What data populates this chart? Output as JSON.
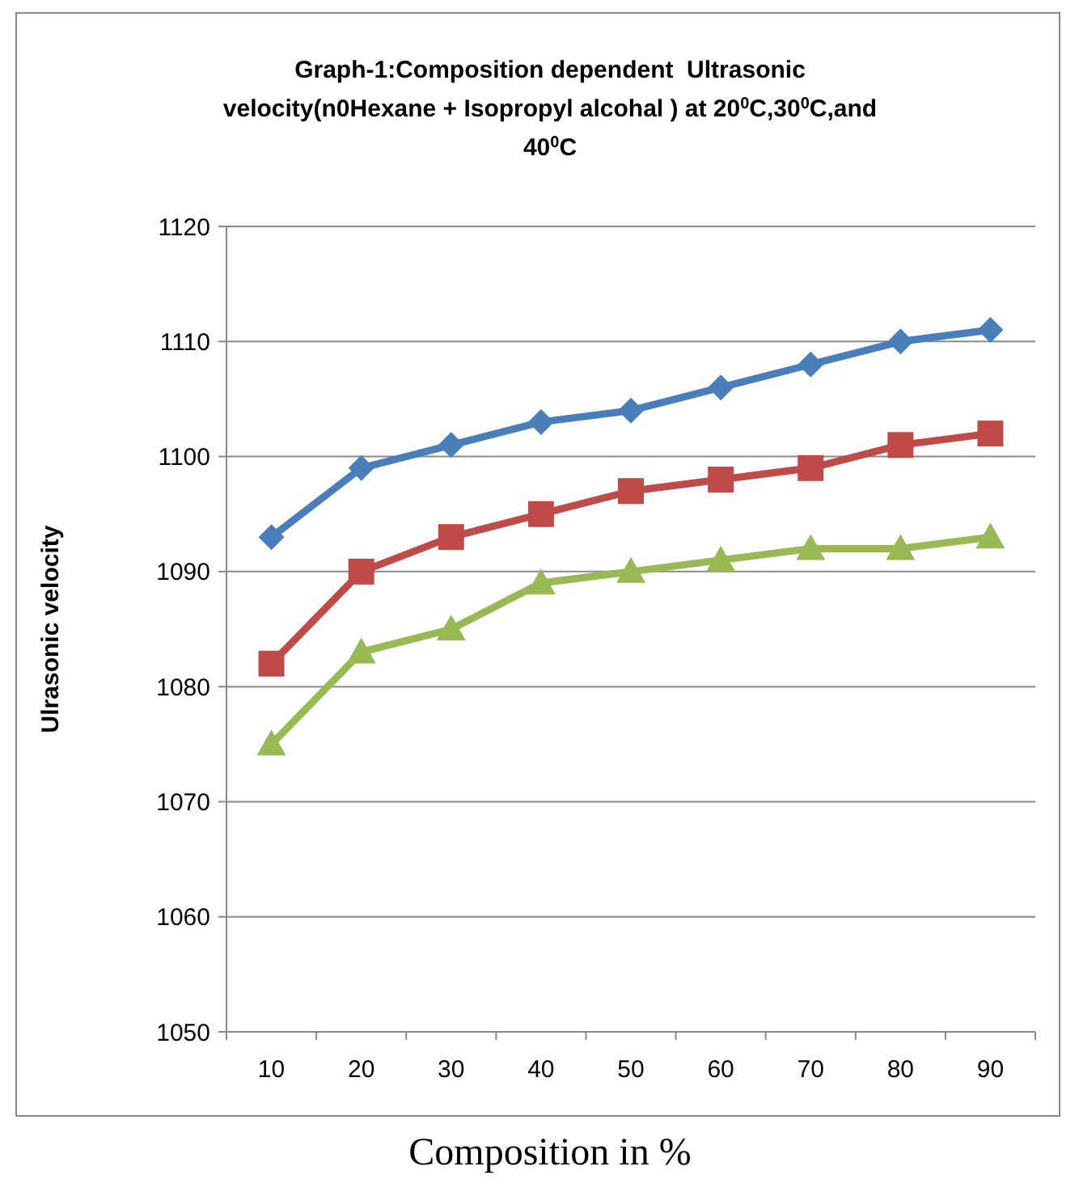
{
  "chart_data": {
    "type": "line",
    "title": "Graph-1:Composition dependent  Ultrasonic velocity(n0Hexane + Isopropyl alcohal ) at 20$^{0}$C,30$^{0}$C,and 40$^{0}$C",
    "xlabel": "Composition in %",
    "ylabel": "Ulrasonic velocity",
    "categories": [
      "10",
      "20",
      "30",
      "40",
      "50",
      "60",
      "70",
      "80",
      "90"
    ],
    "series": [
      {
        "color": "#4a7ebb",
        "marker": "diamond",
        "values": [
          1093,
          1099,
          1101,
          1103,
          1104,
          1106,
          1108,
          1110,
          1111
        ]
      },
      {
        "color": "#be4b48",
        "marker": "square",
        "values": [
          1082,
          1090,
          1093,
          1095,
          1097,
          1098,
          1099,
          1101,
          1102
        ]
      },
      {
        "color": "#98b954",
        "marker": "triangle",
        "values": [
          1075,
          1083,
          1085,
          1089,
          1090,
          1091,
          1092,
          1092,
          1093
        ]
      }
    ],
    "ylim": [
      1050,
      1120
    ],
    "yticks": [
      1050,
      1060,
      1070,
      1080,
      1090,
      1100,
      1110,
      1120
    ],
    "grid": "y",
    "line_style": "solid"
  }
}
